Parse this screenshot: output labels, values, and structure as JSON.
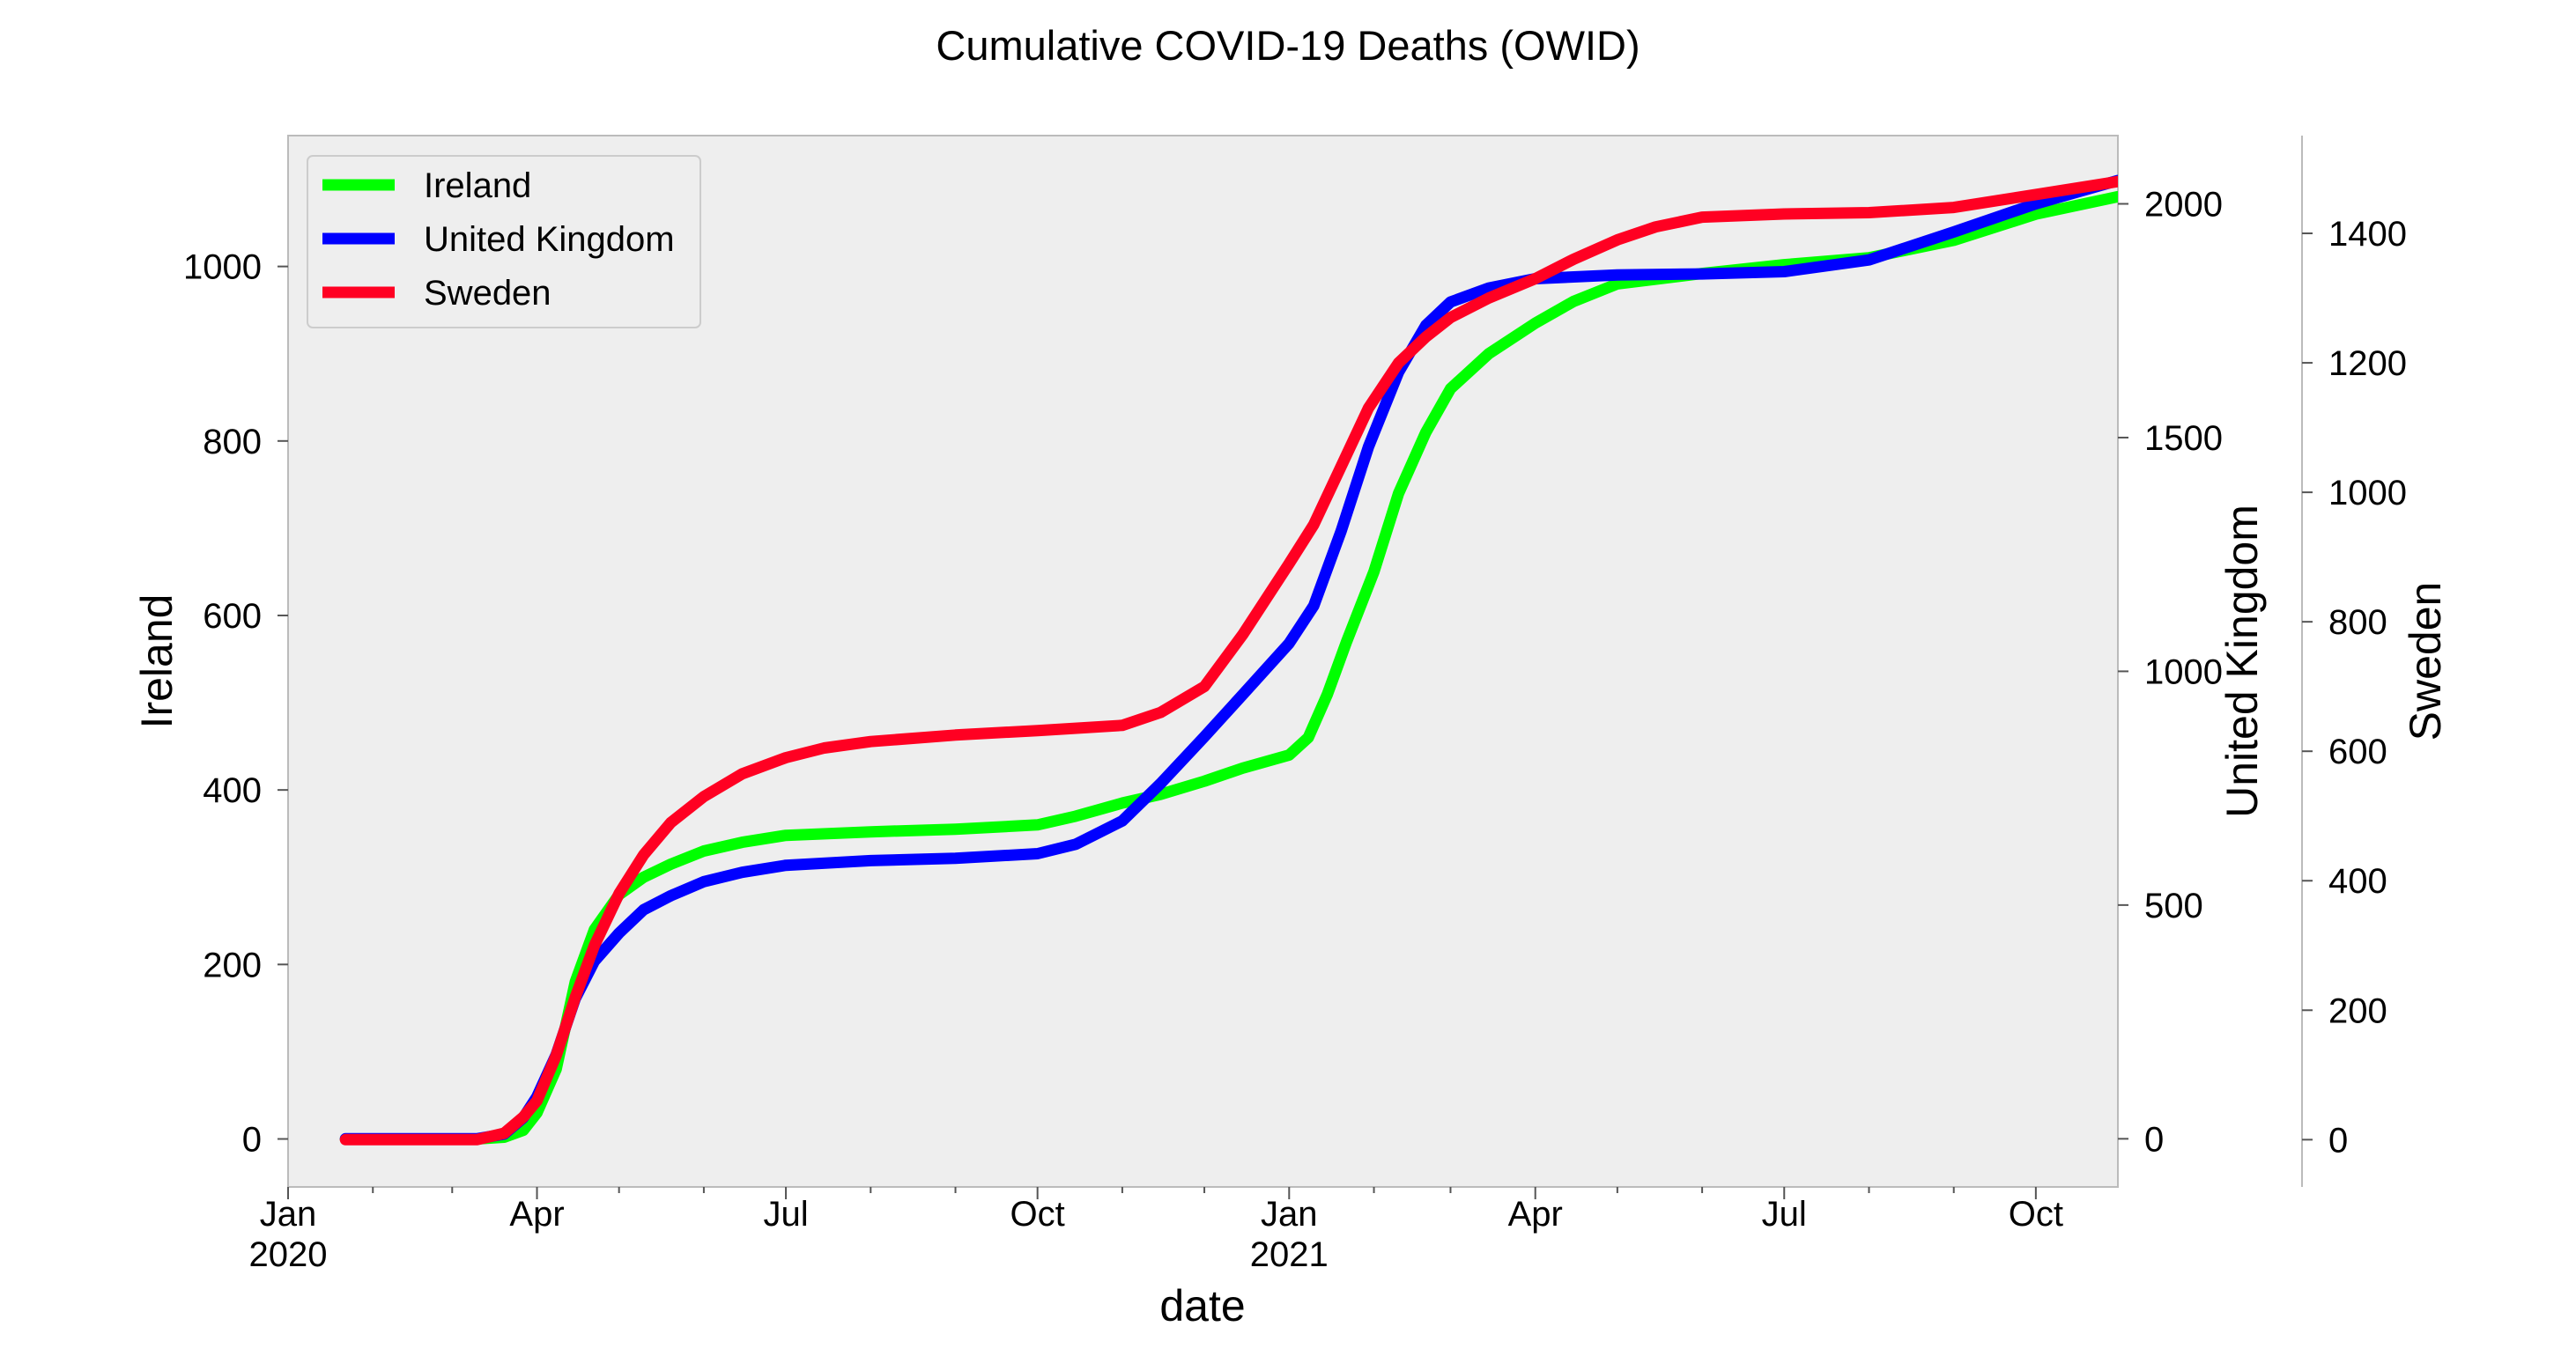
{
  "chart_data": {
    "type": "line",
    "title": "Cumulative COVID-19 Deaths (OWID)",
    "xlabel": "date",
    "x_range": [
      "2020-01-01",
      "2021-10-31"
    ],
    "x_ticks": [
      {
        "date": "2020-01-01",
        "label": "Jan",
        "sublabel": "2020"
      },
      {
        "date": "2020-04-01",
        "label": "Apr",
        "sublabel": ""
      },
      {
        "date": "2020-07-01",
        "label": "Jul",
        "sublabel": ""
      },
      {
        "date": "2020-10-01",
        "label": "Oct",
        "sublabel": ""
      },
      {
        "date": "2021-01-01",
        "label": "Jan",
        "sublabel": "2021"
      },
      {
        "date": "2021-04-01",
        "label": "Apr",
        "sublabel": ""
      },
      {
        "date": "2021-07-01",
        "label": "Jul",
        "sublabel": ""
      },
      {
        "date": "2021-10-01",
        "label": "Oct",
        "sublabel": ""
      }
    ],
    "y_axes": [
      {
        "label": "Ireland",
        "side": "left",
        "range": [
          -55,
          1150
        ],
        "ticks": [
          0,
          200,
          400,
          600,
          800,
          1000
        ]
      },
      {
        "label": "United Kingdom",
        "side": "right",
        "range": [
          -103,
          2146
        ],
        "ticks": [
          0,
          500,
          1000,
          1500,
          2000
        ]
      },
      {
        "label": "Sweden",
        "side": "right",
        "range": [
          -73,
          1551
        ],
        "ticks": [
          0,
          200,
          400,
          600,
          800,
          1000,
          1200,
          1400
        ]
      }
    ],
    "grid": false,
    "legend_position": "top-left",
    "series": [
      {
        "name": "Ireland",
        "axis": 0,
        "color": "#00ff00",
        "points": [
          [
            "2020-01-22",
            0
          ],
          [
            "2020-03-10",
            0
          ],
          [
            "2020-03-20",
            2
          ],
          [
            "2020-03-27",
            10
          ],
          [
            "2020-04-01",
            30
          ],
          [
            "2020-04-08",
            80
          ],
          [
            "2020-04-15",
            180
          ],
          [
            "2020-04-22",
            240
          ],
          [
            "2020-05-01",
            280
          ],
          [
            "2020-05-10",
            300
          ],
          [
            "2020-05-20",
            315
          ],
          [
            "2020-06-01",
            330
          ],
          [
            "2020-06-15",
            340
          ],
          [
            "2020-07-01",
            348
          ],
          [
            "2020-08-01",
            352
          ],
          [
            "2020-09-01",
            355
          ],
          [
            "2020-10-01",
            360
          ],
          [
            "2020-10-15",
            370
          ],
          [
            "2020-11-01",
            385
          ],
          [
            "2020-11-15",
            395
          ],
          [
            "2020-12-01",
            410
          ],
          [
            "2020-12-15",
            425
          ],
          [
            "2021-01-01",
            440
          ],
          [
            "2021-01-08",
            460
          ],
          [
            "2021-01-15",
            510
          ],
          [
            "2021-01-22",
            570
          ],
          [
            "2021-02-01",
            650
          ],
          [
            "2021-02-10",
            740
          ],
          [
            "2021-02-20",
            810
          ],
          [
            "2021-03-01",
            860
          ],
          [
            "2021-03-15",
            900
          ],
          [
            "2021-04-01",
            935
          ],
          [
            "2021-04-15",
            960
          ],
          [
            "2021-05-01",
            980
          ],
          [
            "2021-06-01",
            992
          ],
          [
            "2021-07-01",
            1002
          ],
          [
            "2021-08-01",
            1010
          ],
          [
            "2021-09-01",
            1030
          ],
          [
            "2021-10-01",
            1060
          ],
          [
            "2021-10-31",
            1080
          ]
        ]
      },
      {
        "name": "United Kingdom",
        "axis": 1,
        "color": "#0000ff",
        "points": [
          [
            "2020-01-22",
            0
          ],
          [
            "2020-03-10",
            0
          ],
          [
            "2020-03-20",
            10
          ],
          [
            "2020-03-27",
            45
          ],
          [
            "2020-04-01",
            90
          ],
          [
            "2020-04-08",
            180
          ],
          [
            "2020-04-15",
            300
          ],
          [
            "2020-04-22",
            380
          ],
          [
            "2020-05-01",
            440
          ],
          [
            "2020-05-10",
            490
          ],
          [
            "2020-05-20",
            520
          ],
          [
            "2020-06-01",
            550
          ],
          [
            "2020-06-15",
            570
          ],
          [
            "2020-07-01",
            585
          ],
          [
            "2020-08-01",
            595
          ],
          [
            "2020-09-01",
            600
          ],
          [
            "2020-10-01",
            610
          ],
          [
            "2020-10-15",
            630
          ],
          [
            "2020-11-01",
            680
          ],
          [
            "2020-11-15",
            760
          ],
          [
            "2020-12-01",
            860
          ],
          [
            "2020-12-15",
            950
          ],
          [
            "2021-01-01",
            1060
          ],
          [
            "2021-01-10",
            1140
          ],
          [
            "2021-01-20",
            1300
          ],
          [
            "2021-01-30",
            1480
          ],
          [
            "2021-02-10",
            1640
          ],
          [
            "2021-02-20",
            1740
          ],
          [
            "2021-03-01",
            1790
          ],
          [
            "2021-03-15",
            1820
          ],
          [
            "2021-04-01",
            1840
          ],
          [
            "2021-05-01",
            1848
          ],
          [
            "2021-06-01",
            1850
          ],
          [
            "2021-07-01",
            1855
          ],
          [
            "2021-08-01",
            1880
          ],
          [
            "2021-09-01",
            1940
          ],
          [
            "2021-10-01",
            2000
          ],
          [
            "2021-10-31",
            2050
          ]
        ]
      },
      {
        "name": "Sweden",
        "axis": 2,
        "color": "#ff0022",
        "points": [
          [
            "2020-01-22",
            0
          ],
          [
            "2020-03-10",
            0
          ],
          [
            "2020-03-20",
            10
          ],
          [
            "2020-03-27",
            35
          ],
          [
            "2020-04-01",
            60
          ],
          [
            "2020-04-08",
            130
          ],
          [
            "2020-04-15",
            220
          ],
          [
            "2020-04-22",
            300
          ],
          [
            "2020-05-01",
            380
          ],
          [
            "2020-05-10",
            440
          ],
          [
            "2020-05-20",
            490
          ],
          [
            "2020-06-01",
            530
          ],
          [
            "2020-06-15",
            565
          ],
          [
            "2020-07-01",
            590
          ],
          [
            "2020-07-15",
            605
          ],
          [
            "2020-08-01",
            615
          ],
          [
            "2020-09-01",
            625
          ],
          [
            "2020-10-01",
            632
          ],
          [
            "2020-11-01",
            640
          ],
          [
            "2020-11-15",
            660
          ],
          [
            "2020-12-01",
            700
          ],
          [
            "2020-12-15",
            780
          ],
          [
            "2021-01-01",
            890
          ],
          [
            "2021-01-10",
            950
          ],
          [
            "2021-01-20",
            1040
          ],
          [
            "2021-01-30",
            1130
          ],
          [
            "2021-02-10",
            1200
          ],
          [
            "2021-02-20",
            1240
          ],
          [
            "2021-03-01",
            1270
          ],
          [
            "2021-03-15",
            1300
          ],
          [
            "2021-04-01",
            1330
          ],
          [
            "2021-04-15",
            1360
          ],
          [
            "2021-05-01",
            1390
          ],
          [
            "2021-05-15",
            1410
          ],
          [
            "2021-06-01",
            1425
          ],
          [
            "2021-07-01",
            1430
          ],
          [
            "2021-08-01",
            1432
          ],
          [
            "2021-09-01",
            1440
          ],
          [
            "2021-10-01",
            1460
          ],
          [
            "2021-10-31",
            1480
          ]
        ]
      }
    ]
  }
}
